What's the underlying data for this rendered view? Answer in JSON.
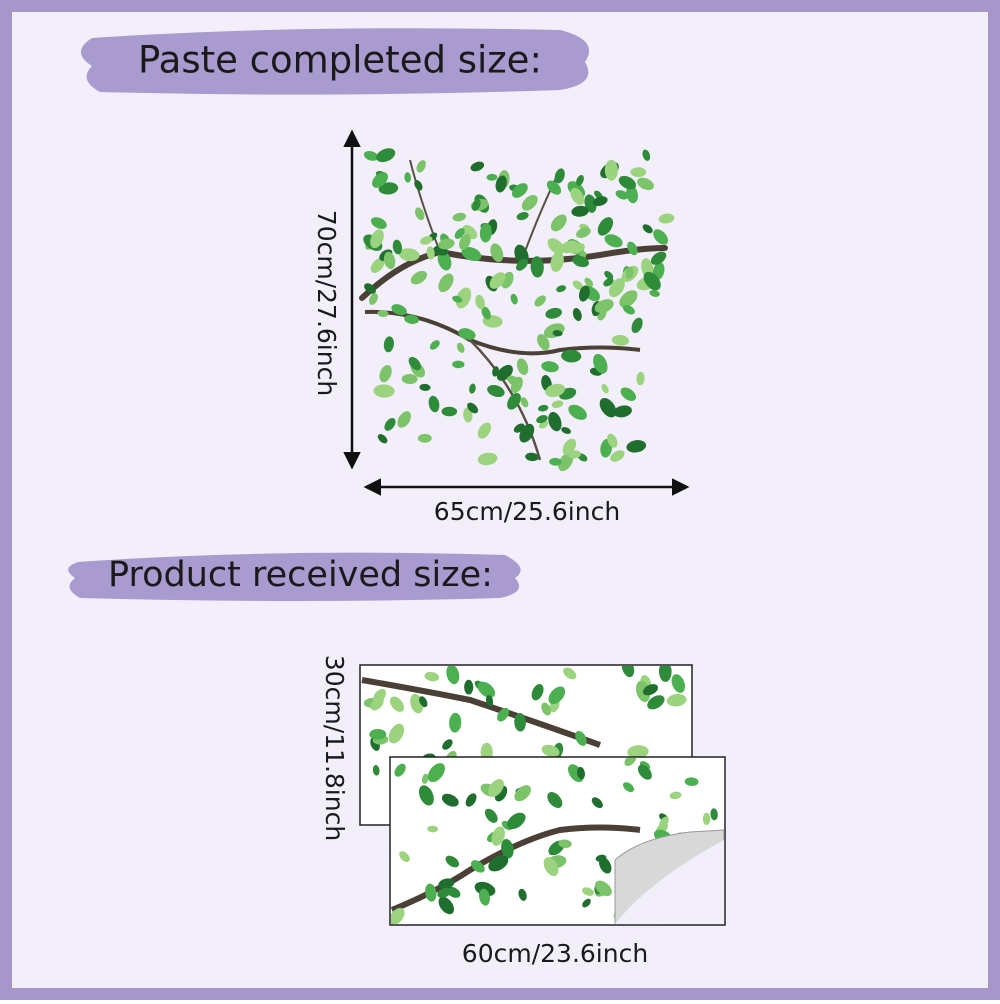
{
  "completed": {
    "title": "Paste completed size:",
    "height": "70cm/27.6inch",
    "width": "65cm/25.6inch"
  },
  "received": {
    "title": "Product  received size:",
    "height": "30cm/11.8inch",
    "width": "60cm/23.6inch"
  }
}
